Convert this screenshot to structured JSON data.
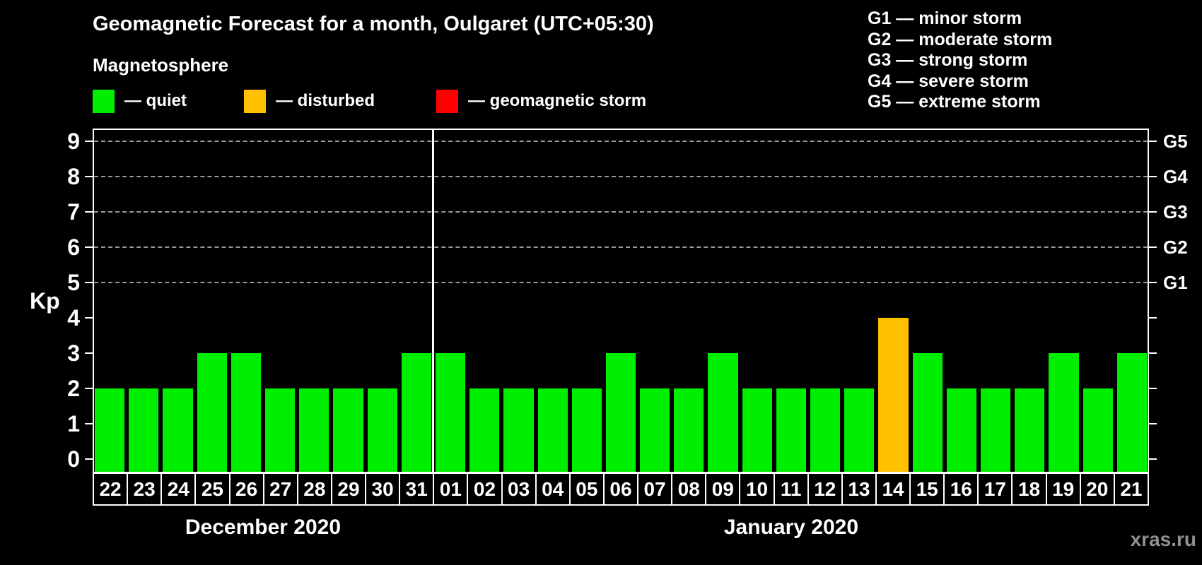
{
  "title": "Geomagnetic Forecast for a month, Oulgaret (UTC+05:30)",
  "magnetosphere": {
    "heading": "Magnetosphere",
    "items": [
      {
        "label": "— quiet",
        "color": "#00ee00"
      },
      {
        "label": "— disturbed",
        "color": "#ffc000"
      },
      {
        "label": "— geomagnetic storm",
        "color": "#ff0000"
      }
    ]
  },
  "storm_scale": {
    "items": [
      "G1 — minor storm",
      "G2 — moderate storm",
      "G3 — strong storm",
      "G4 — severe storm",
      "G5 — extreme storm"
    ]
  },
  "watermark": "xras.ru",
  "chart_data": {
    "type": "bar",
    "title": "Geomagnetic Forecast for a month, Oulgaret (UTC+05:30)",
    "ylabel": "Kp",
    "ylim": [
      0,
      9
    ],
    "yticks": [
      0,
      1,
      2,
      3,
      4,
      5,
      6,
      7,
      8,
      9
    ],
    "gridlines_at": [
      5,
      6,
      7,
      8,
      9
    ],
    "grid": "dashed",
    "legend_position": "top",
    "right_axis": [
      {
        "label": "G1",
        "kp": 5
      },
      {
        "label": "G2",
        "kp": 6
      },
      {
        "label": "G3",
        "kp": 7
      },
      {
        "label": "G4",
        "kp": 8
      },
      {
        "label": "G5",
        "kp": 9
      }
    ],
    "colors": {
      "quiet": "#00ee00",
      "disturbed": "#ffc000",
      "storm": "#ff0000",
      "grid": "#999999",
      "frame": "#ffffff",
      "background": "#000000"
    },
    "months": [
      {
        "label": "December 2020",
        "count": 10
      },
      {
        "label": "January 2020",
        "count": 21
      }
    ],
    "bars": [
      {
        "day": "22",
        "kp": 2,
        "state": "quiet"
      },
      {
        "day": "23",
        "kp": 2,
        "state": "quiet"
      },
      {
        "day": "24",
        "kp": 2,
        "state": "quiet"
      },
      {
        "day": "25",
        "kp": 3,
        "state": "quiet"
      },
      {
        "day": "26",
        "kp": 3,
        "state": "quiet"
      },
      {
        "day": "27",
        "kp": 2,
        "state": "quiet"
      },
      {
        "day": "28",
        "kp": 2,
        "state": "quiet"
      },
      {
        "day": "29",
        "kp": 2,
        "state": "quiet"
      },
      {
        "day": "30",
        "kp": 2,
        "state": "quiet"
      },
      {
        "day": "31",
        "kp": 3,
        "state": "quiet"
      },
      {
        "day": "01",
        "kp": 3,
        "state": "quiet"
      },
      {
        "day": "02",
        "kp": 2,
        "state": "quiet"
      },
      {
        "day": "03",
        "kp": 2,
        "state": "quiet"
      },
      {
        "day": "04",
        "kp": 2,
        "state": "quiet"
      },
      {
        "day": "05",
        "kp": 2,
        "state": "quiet"
      },
      {
        "day": "06",
        "kp": 3,
        "state": "quiet"
      },
      {
        "day": "07",
        "kp": 2,
        "state": "quiet"
      },
      {
        "day": "08",
        "kp": 2,
        "state": "quiet"
      },
      {
        "day": "09",
        "kp": 3,
        "state": "quiet"
      },
      {
        "day": "10",
        "kp": 2,
        "state": "quiet"
      },
      {
        "day": "11",
        "kp": 2,
        "state": "quiet"
      },
      {
        "day": "12",
        "kp": 2,
        "state": "quiet"
      },
      {
        "day": "13",
        "kp": 2,
        "state": "quiet"
      },
      {
        "day": "14",
        "kp": 4,
        "state": "disturbed"
      },
      {
        "day": "15",
        "kp": 3,
        "state": "quiet"
      },
      {
        "day": "16",
        "kp": 2,
        "state": "quiet"
      },
      {
        "day": "17",
        "kp": 2,
        "state": "quiet"
      },
      {
        "day": "18",
        "kp": 2,
        "state": "quiet"
      },
      {
        "day": "19",
        "kp": 3,
        "state": "quiet"
      },
      {
        "day": "20",
        "kp": 2,
        "state": "quiet"
      },
      {
        "day": "21",
        "kp": 3,
        "state": "quiet"
      }
    ]
  }
}
